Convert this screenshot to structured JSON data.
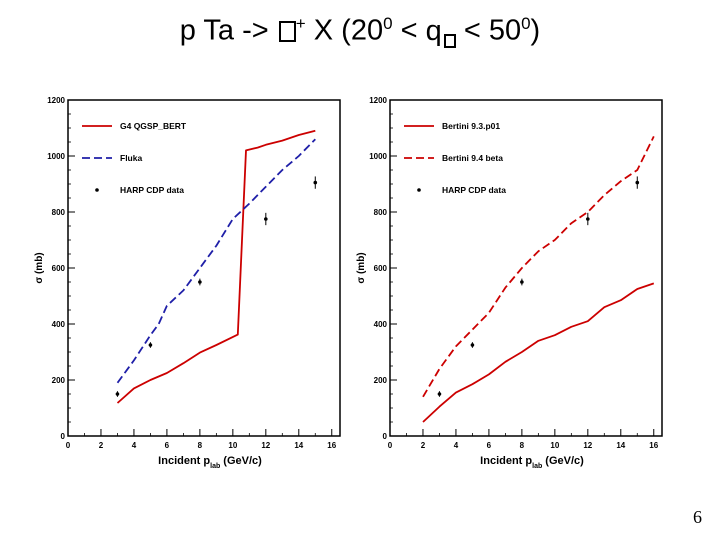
{
  "slide": {
    "title_prefix": "p Ta ->",
    "title_sup": "+",
    "title_mid": " X   (20",
    "angle_lo_sup": "0",
    "title_lt1": " < ",
    "theta_glyph": "q",
    "title_lt2": " < 50",
    "angle_hi_sup": "0",
    "title_close": ")",
    "page_number": "6"
  },
  "chart_data": [
    {
      "type": "line",
      "ylabel": "σ (mb)",
      "xlabel": "Incident p",
      "xlabel_sub": "lab",
      "xlabel_unit": " (GeV/c)",
      "xlim": [
        0,
        16.5
      ],
      "ylim": [
        0,
        1200
      ],
      "xticks": [
        0,
        2,
        4,
        6,
        8,
        10,
        12,
        14,
        16
      ],
      "yticks": [
        0,
        200,
        400,
        600,
        800,
        1000,
        1200
      ],
      "legend": [
        "G4 QGSP_BERT",
        "Fluka",
        "HARP CDP data"
      ],
      "series": [
        {
          "name": "G4 QGSP_BERT",
          "color": "#cc0000",
          "style": "solid",
          "x": [
            3,
            4,
            5,
            6,
            7,
            8,
            9,
            10.3,
            10.8,
            11.5,
            12,
            13,
            14,
            15
          ],
          "y": [
            118,
            170,
            200,
            225,
            260,
            298,
            325,
            362,
            1020,
            1030,
            1040,
            1055,
            1075,
            1090
          ]
        },
        {
          "name": "Fluka",
          "color": "#1f1fa8",
          "style": "dashed",
          "x": [
            3,
            4,
            5,
            5.5,
            6,
            7,
            8,
            9,
            10,
            11,
            12,
            13,
            14,
            15
          ],
          "y": [
            190,
            270,
            360,
            400,
            465,
            520,
            600,
            680,
            775,
            830,
            890,
            950,
            1000,
            1060
          ]
        }
      ],
      "data_points": {
        "name": "HARP CDP data",
        "x": [
          3,
          5,
          8,
          12,
          15
        ],
        "y": [
          150,
          325,
          550,
          775,
          905
        ],
        "err": [
          10,
          10,
          12,
          22,
          22
        ]
      }
    },
    {
      "type": "line",
      "ylabel": "σ (mb)",
      "xlabel": "Incident p",
      "xlabel_sub": "lab",
      "xlabel_unit": " (GeV/c)",
      "xlim": [
        0,
        16.5
      ],
      "ylim": [
        0,
        1200
      ],
      "xticks": [
        0,
        2,
        4,
        6,
        8,
        10,
        12,
        14,
        16
      ],
      "yticks": [
        0,
        200,
        400,
        600,
        800,
        1000,
        1200
      ],
      "legend": [
        "Bertini 9.3.p01",
        "Bertini 9.4 beta",
        "HARP CDP data"
      ],
      "series": [
        {
          "name": "Bertini 9.3.p01",
          "color": "#cc0000",
          "style": "solid",
          "x": [
            2,
            3,
            4,
            5,
            6,
            7,
            8,
            9,
            10,
            11,
            12,
            13,
            14,
            15,
            16
          ],
          "y": [
            50,
            105,
            155,
            185,
            220,
            265,
            300,
            340,
            360,
            390,
            410,
            460,
            485,
            525,
            545
          ]
        },
        {
          "name": "Bertini 9.4 beta",
          "color": "#cc0000",
          "style": "dashed",
          "x": [
            2,
            3,
            4,
            5,
            6,
            7,
            8,
            9,
            10,
            11,
            12,
            13,
            14,
            15,
            16
          ],
          "y": [
            140,
            240,
            320,
            380,
            440,
            530,
            600,
            660,
            700,
            760,
            800,
            860,
            910,
            950,
            1070
          ]
        }
      ],
      "data_points": {
        "name": "HARP CDP data",
        "x": [
          3,
          5,
          8,
          12,
          15
        ],
        "y": [
          150,
          325,
          550,
          775,
          905
        ],
        "err": [
          10,
          10,
          12,
          22,
          22
        ]
      }
    }
  ]
}
